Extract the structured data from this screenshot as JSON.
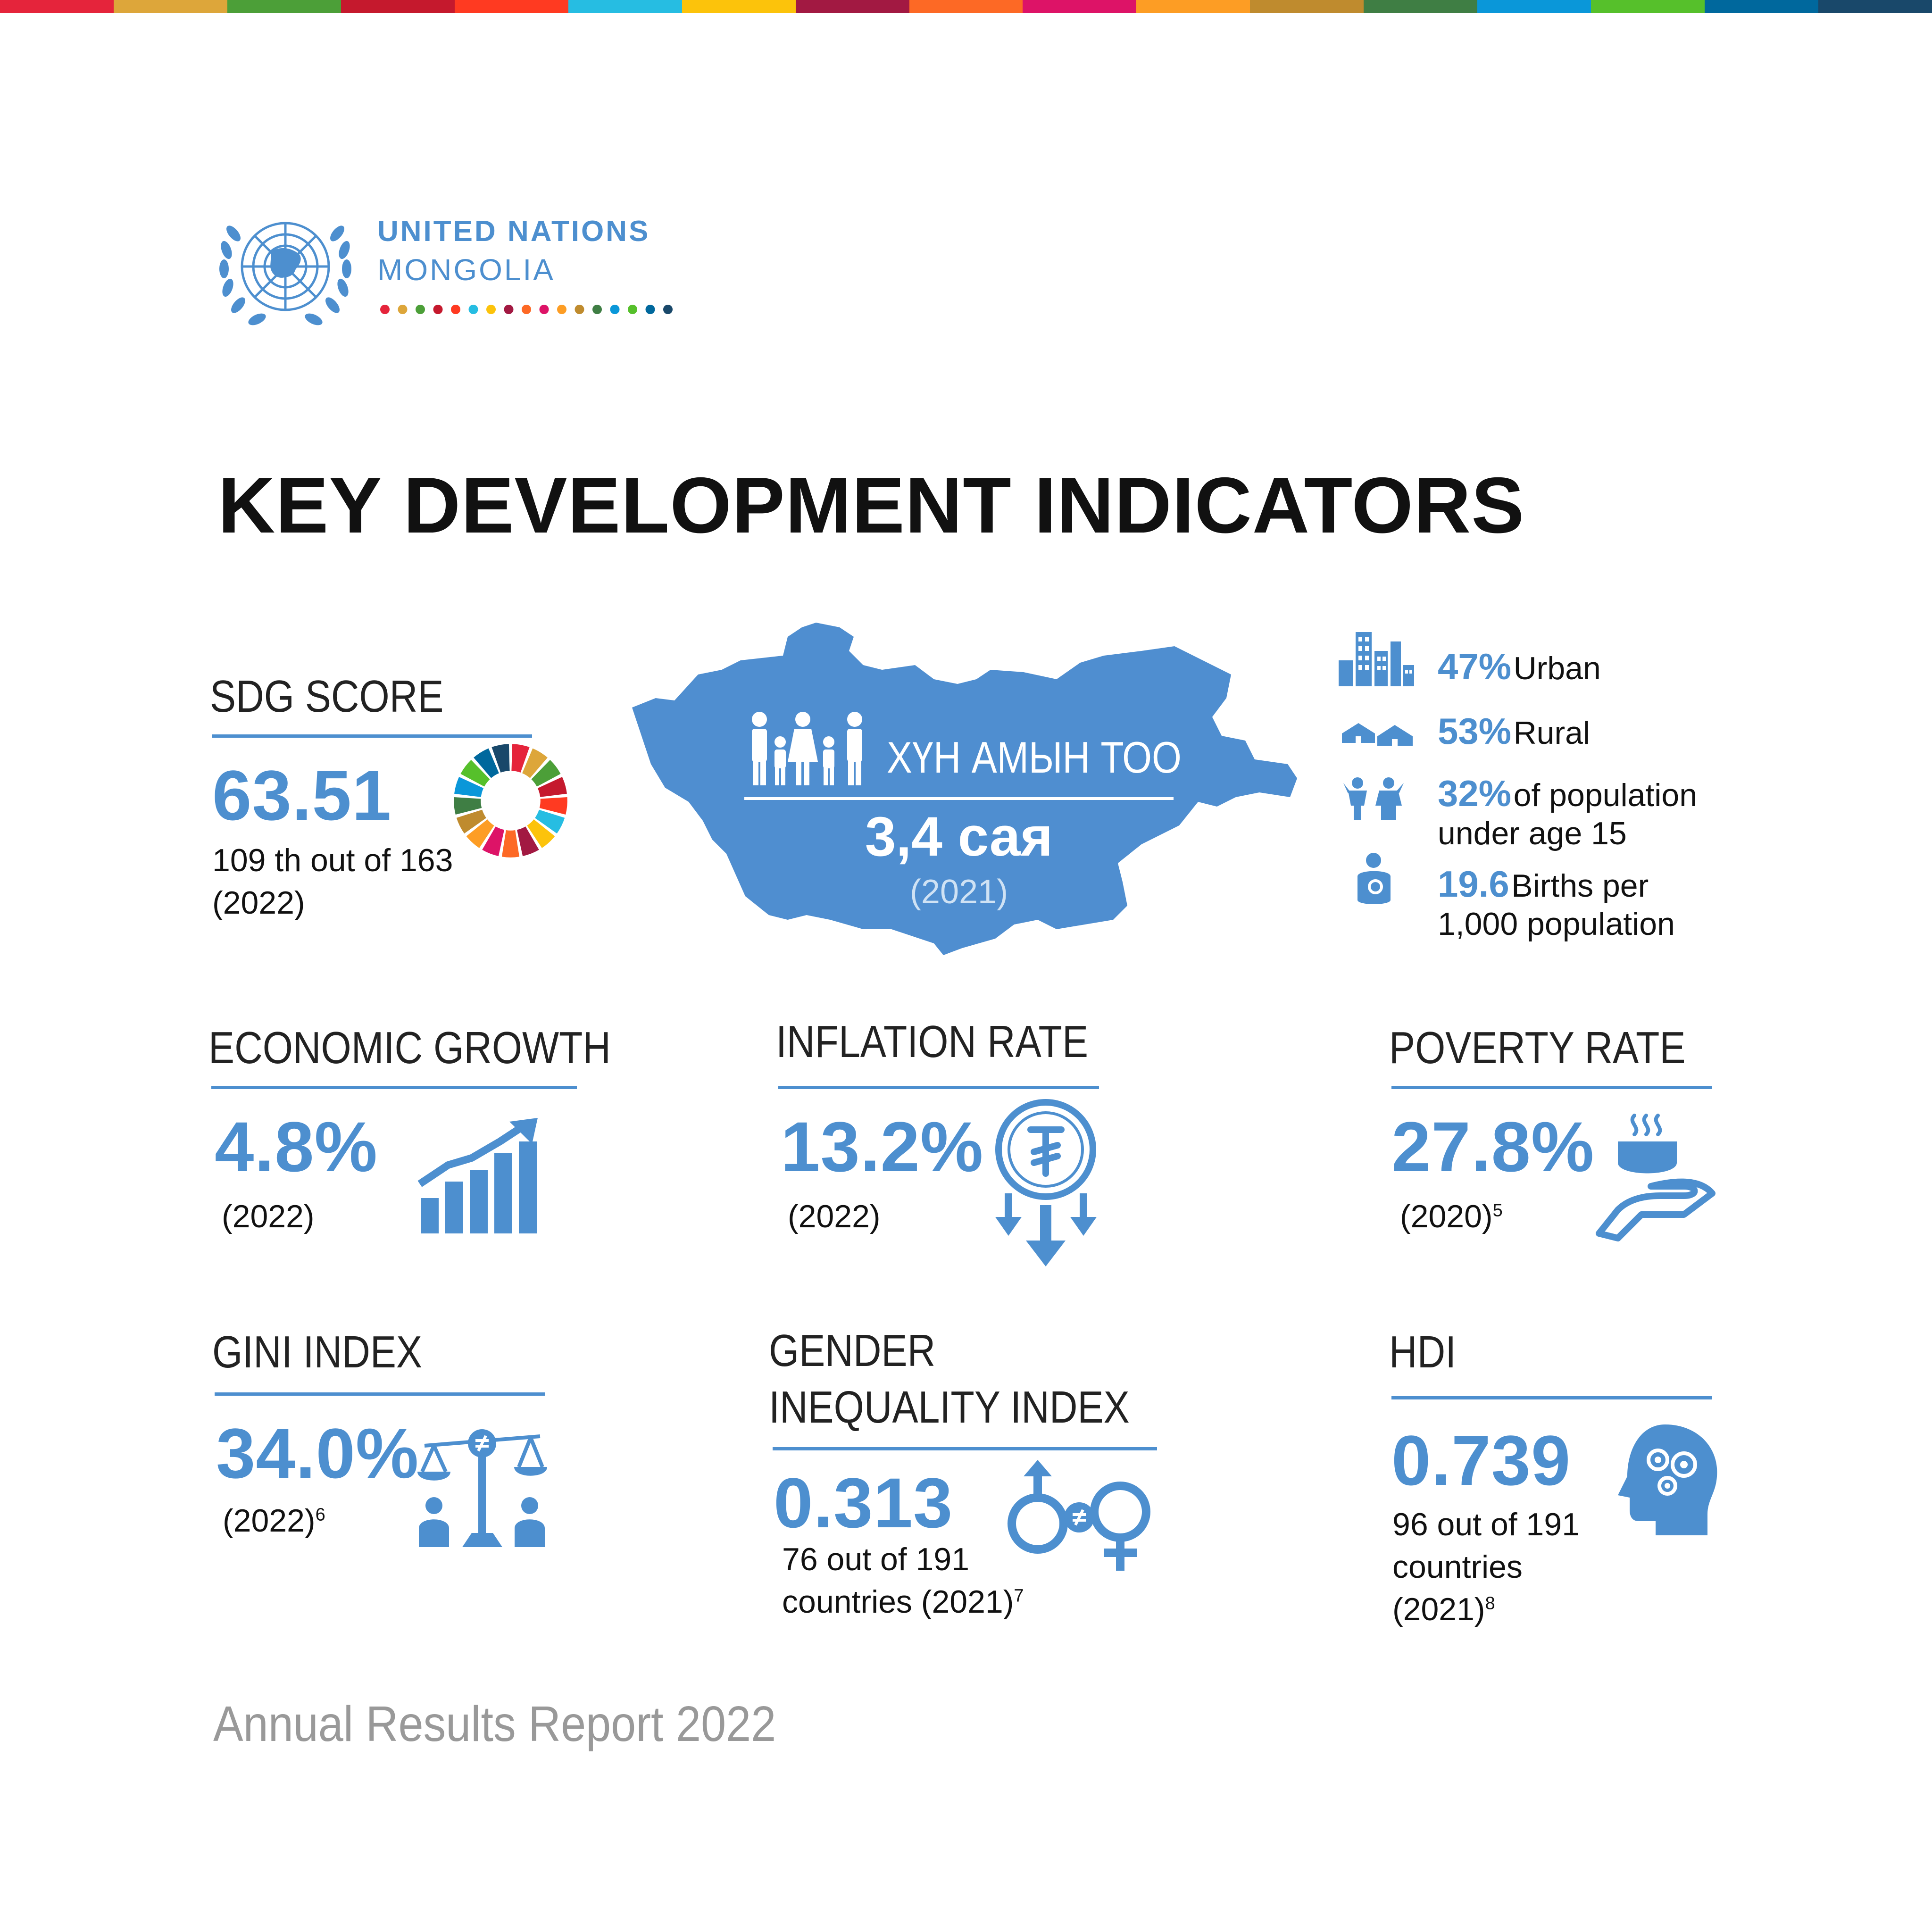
{
  "brand": {
    "org_name": "UNITED NATIONS",
    "org_sub": "MONGOLIA",
    "sdg_colors": [
      "#e5243b",
      "#dda63a",
      "#4c9f38",
      "#c5192d",
      "#ff3a21",
      "#26bde2",
      "#fcc30b",
      "#a21942",
      "#fd6925",
      "#dd1367",
      "#fd9d24",
      "#bf8b2e",
      "#3f7e44",
      "#0a97d9",
      "#56c02b",
      "#00689d",
      "#19486a"
    ]
  },
  "title": "KEY DEVELOPMENT INDICATORS",
  "sdg": {
    "label": "SDG SCORE",
    "value": "63.51",
    "rank": "109 th out of 163",
    "year": "(2022)"
  },
  "population": {
    "label": "ХҮН АМЫН ТОО",
    "value": "3,4 сая",
    "year": "(2021)"
  },
  "demographics": [
    {
      "icon": "city-buildings-icon",
      "value": "47%",
      "text": "Urban"
    },
    {
      "icon": "ger-yurt-icon",
      "value": "53%",
      "text": "Rural"
    },
    {
      "icon": "children-icon",
      "value": "32%",
      "text": "of population",
      "text2": "under age 15"
    },
    {
      "icon": "mother-baby-icon",
      "value": "19.6",
      "text": "Births per",
      "text2": "1,000 population"
    }
  ],
  "economic_growth": {
    "label": "ECONOMIC GROWTH",
    "value": "4.8%",
    "year": "(2022)"
  },
  "inflation": {
    "label": "INFLATION RATE",
    "value": "13.2%",
    "year": "(2022)"
  },
  "poverty": {
    "label": "POVERTY RATE",
    "value": "27.8%",
    "year": "(2020)",
    "note": "5"
  },
  "gini": {
    "label": "GINI INDEX",
    "value": "34.0%",
    "year": "(2022)",
    "note": "6"
  },
  "gender": {
    "label_line1": "GENDER",
    "label_line2": "INEQUALITY INDEX",
    "value": "0.313",
    "line1": "76 out of 191",
    "line2": "countries (2021)",
    "note": "7"
  },
  "hdi": {
    "label": "HDI",
    "value": "0.739",
    "line1": "96 out of 191",
    "line2": "countries",
    "line3": "(2021)",
    "note": "8"
  },
  "footer": "Annual Results Report 2022"
}
